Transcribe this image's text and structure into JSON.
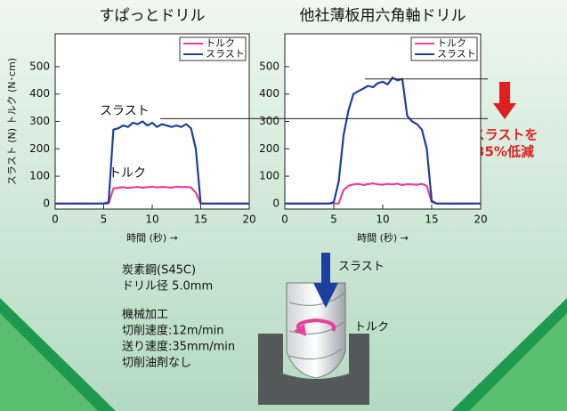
{
  "chart_data": [
    {
      "type": "line",
      "title": "すぱっとドリル",
      "ylabel": "スラスト (N) トルク (N･cm)",
      "xlabel": "時間 (秒) →",
      "xlim": [
        0,
        20
      ],
      "ylim": [
        -20,
        620
      ],
      "xticks": [
        0,
        5,
        10,
        15,
        20
      ],
      "yticks": [
        0,
        100,
        200,
        300,
        400,
        500
      ],
      "legend": "upper right",
      "reference_lines": [
        310
      ],
      "annotations": [
        "スラスト",
        "トルク"
      ],
      "x": [
        0,
        0.5,
        1,
        1.5,
        2,
        2.5,
        3,
        3.5,
        4,
        4.5,
        5,
        5.5,
        6,
        6.5,
        7,
        7.5,
        8,
        8.5,
        9,
        9.5,
        10,
        10.5,
        11,
        11.5,
        12,
        12.5,
        13,
        13.5,
        14,
        14.5,
        15,
        15.5,
        16,
        16.5,
        17,
        17.5,
        18,
        18.5,
        19,
        19.5,
        20
      ],
      "series": [
        {
          "name": "トルク",
          "color": "#e8409a",
          "values": [
            0,
            0,
            0,
            0,
            0,
            0,
            0,
            0,
            0,
            0,
            0,
            0,
            55,
            58,
            60,
            57,
            59,
            61,
            58,
            60,
            62,
            59,
            61,
            60,
            58,
            62,
            60,
            61,
            59,
            40,
            0,
            0,
            0,
            0,
            0,
            0,
            0,
            0,
            0,
            0,
            0
          ]
        },
        {
          "name": "スラスト",
          "color": "#1d3f9e",
          "values": [
            0,
            0,
            0,
            0,
            0,
            0,
            0,
            0,
            0,
            0,
            0,
            5,
            270,
            275,
            285,
            280,
            295,
            290,
            300,
            285,
            295,
            280,
            290,
            285,
            280,
            285,
            280,
            290,
            275,
            200,
            0,
            0,
            0,
            0,
            0,
            0,
            0,
            0,
            0,
            0,
            0
          ]
        }
      ]
    },
    {
      "type": "line",
      "title": "他社薄板用六角軸ドリル",
      "xlabel": "時間 (秒) →",
      "xlim": [
        0,
        20
      ],
      "ylim": [
        -20,
        620
      ],
      "xticks": [
        0,
        5,
        10,
        15,
        20
      ],
      "yticks": [
        0,
        100,
        200,
        300,
        400,
        500
      ],
      "legend": "upper right",
      "reference_lines": [
        310,
        455
      ],
      "x": [
        0,
        0.5,
        1,
        1.5,
        2,
        2.5,
        3,
        3.5,
        4,
        4.5,
        5,
        5.5,
        6,
        6.5,
        7,
        7.5,
        8,
        8.5,
        9,
        9.5,
        10,
        10.5,
        11,
        11.5,
        12,
        12.5,
        13,
        13.5,
        14,
        14.5,
        15,
        15.5,
        16,
        16.5,
        17,
        17.5,
        18,
        18.5,
        19,
        19.5,
        20
      ],
      "series": [
        {
          "name": "トルク",
          "color": "#e8409a",
          "values": [
            0,
            0,
            0,
            0,
            0,
            0,
            0,
            0,
            0,
            0,
            0,
            0,
            50,
            65,
            70,
            72,
            68,
            71,
            74,
            70,
            69,
            72,
            70,
            73,
            68,
            71,
            70,
            69,
            72,
            65,
            5,
            0,
            0,
            0,
            0,
            0,
            0,
            0,
            0,
            0,
            0
          ]
        },
        {
          "name": "スラスト",
          "color": "#1d3f9e",
          "values": [
            0,
            0,
            0,
            0,
            0,
            0,
            0,
            0,
            0,
            0,
            5,
            80,
            250,
            340,
            400,
            410,
            420,
            430,
            425,
            440,
            445,
            435,
            460,
            450,
            455,
            320,
            300,
            290,
            270,
            200,
            10,
            0,
            0,
            0,
            0,
            0,
            0,
            0,
            0,
            0,
            0
          ]
        }
      ]
    }
  ],
  "reduction": [
    "スラストを",
    "35%低減"
  ],
  "conditions": [
    "炭素鋼(S45C)",
    "ドリル径 5.0mm",
    "機械加工",
    "切削速度:12m/min",
    "送り速度:35mm/min",
    "切削油剤なし"
  ],
  "diagram": {
    "thrust": "スラスト",
    "torque": "トルク"
  }
}
